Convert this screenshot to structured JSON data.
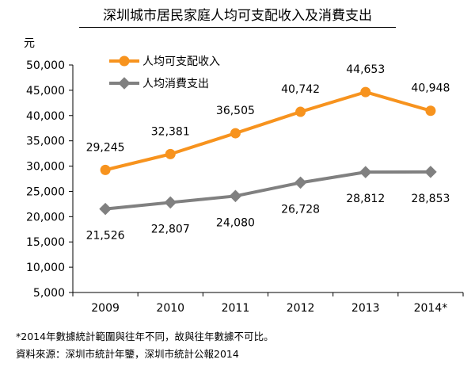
{
  "title": "深圳城市居民家庭人均可支配收入及消費支出",
  "notes": [
    "*2014年數據統計範圍與往年不同，故與往年數據不可比。",
    "資料來源：深圳市統計年鑒，深圳市統計公報2014"
  ],
  "colors": {
    "income": "#F7931E",
    "expenditure": "#808080",
    "axis": "#000000"
  },
  "chart_data": {
    "type": "line",
    "title": "深圳城市居民家庭人均可支配收入及消費支出",
    "ylabel": "元",
    "xlabel": "",
    "categories": [
      "2009",
      "2010",
      "2011",
      "2012",
      "2013",
      "2014*"
    ],
    "ylim": [
      5000,
      50000
    ],
    "yticks": [
      5000,
      10000,
      15000,
      20000,
      25000,
      30000,
      35000,
      40000,
      45000,
      50000
    ],
    "ytick_labels": [
      "5,000",
      "10,000",
      "15,000",
      "20,000",
      "25,000",
      "30,000",
      "35,000",
      "40,000",
      "45,000",
      "50,000"
    ],
    "grid": false,
    "legend_position": "top-left",
    "series": [
      {
        "name": "人均可支配收入",
        "values": [
          29245,
          32381,
          36505,
          40742,
          44653,
          40948
        ],
        "labels": [
          "29,245",
          "32,381",
          "36,505",
          "40,742",
          "44,653",
          "40,948"
        ],
        "label_position": "above"
      },
      {
        "name": "人均消費支出",
        "values": [
          21526,
          22807,
          24080,
          26728,
          28812,
          28853
        ],
        "labels": [
          "21,526",
          "22,807",
          "24,080",
          "26,728",
          "28,812",
          "28,853"
        ],
        "label_position": "below"
      }
    ]
  }
}
